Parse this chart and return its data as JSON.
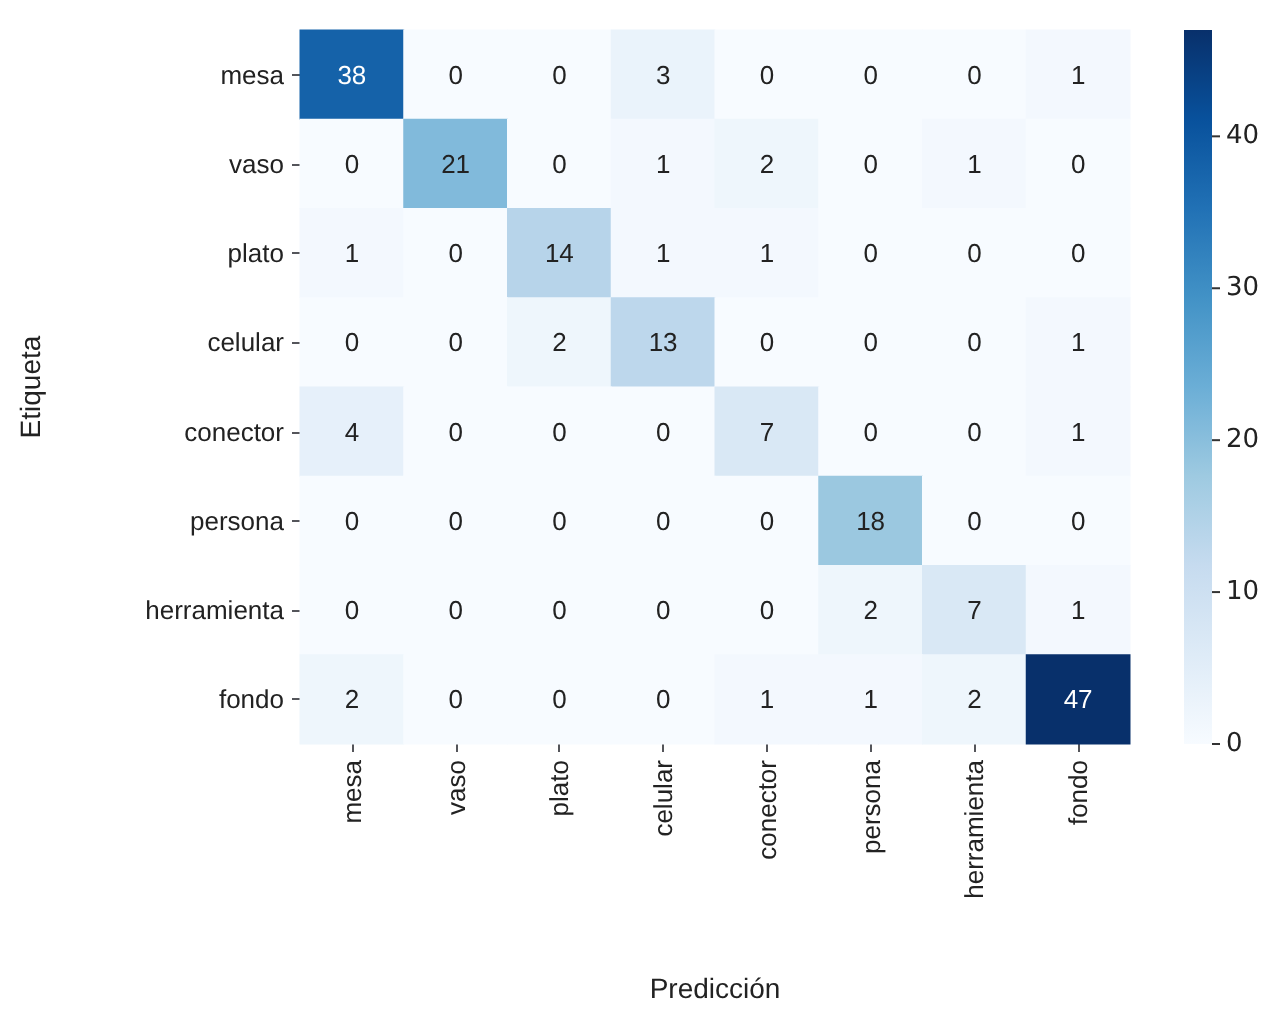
{
  "chart_data": {
    "type": "heatmap",
    "xlabel": "Predicción",
    "ylabel": "Etiqueta",
    "categories": [
      "mesa",
      "vaso",
      "plato",
      "celular",
      "conector",
      "persona",
      "herramienta",
      "fondo"
    ],
    "y_categories": [
      "mesa",
      "vaso",
      "plato",
      "celular",
      "conector",
      "persona",
      "herramienta",
      "fondo"
    ],
    "cells": [
      [
        38,
        0,
        0,
        3,
        0,
        0,
        0,
        1
      ],
      [
        0,
        21,
        0,
        1,
        2,
        0,
        1,
        0
      ],
      [
        1,
        0,
        14,
        1,
        1,
        0,
        0,
        0
      ],
      [
        0,
        0,
        2,
        13,
        0,
        0,
        0,
        1
      ],
      [
        4,
        0,
        0,
        0,
        7,
        0,
        0,
        1
      ],
      [
        0,
        0,
        0,
        0,
        0,
        18,
        0,
        0
      ],
      [
        0,
        0,
        0,
        0,
        0,
        2,
        7,
        1
      ],
      [
        2,
        0,
        0,
        0,
        1,
        1,
        2,
        47
      ]
    ],
    "clim": [
      0,
      47
    ],
    "cticks": [
      0,
      10,
      20,
      30,
      40
    ],
    "data_labels": true
  }
}
